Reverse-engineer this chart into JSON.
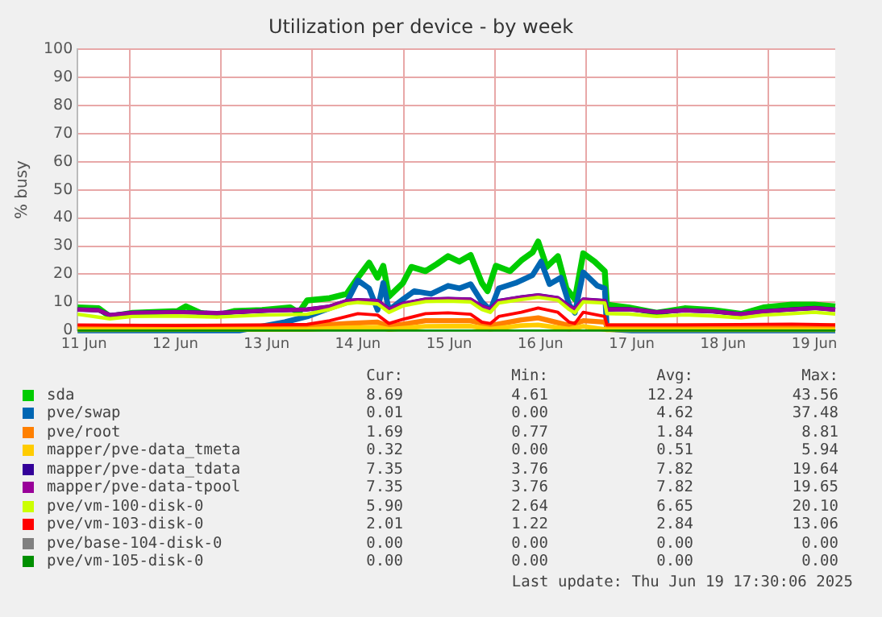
{
  "chart_data": {
    "type": "line",
    "title": "Utilization per device - by week",
    "ylabel": "% busy",
    "xlim": [
      "2025-06-11T10:19",
      "2025-06-19T17:30"
    ],
    "xticks": [
      {
        "value": "2025-06-11T12:00",
        "label": "11 Jun"
      },
      {
        "value": "2025-06-12T00:00",
        "label": null
      },
      {
        "value": "2025-06-12T12:00",
        "label": "12 Jun"
      },
      {
        "value": "2025-06-13T00:00",
        "label": null
      },
      {
        "value": "2025-06-13T12:00",
        "label": "13 Jun"
      },
      {
        "value": "2025-06-14T00:00",
        "label": null
      },
      {
        "value": "2025-06-14T12:00",
        "label": "14 Jun"
      },
      {
        "value": "2025-06-15T00:00",
        "label": null
      },
      {
        "value": "2025-06-15T12:00",
        "label": "15 Jun"
      },
      {
        "value": "2025-06-16T00:00",
        "label": null
      },
      {
        "value": "2025-06-16T12:00",
        "label": "16 Jun"
      },
      {
        "value": "2025-06-17T00:00",
        "label": null
      },
      {
        "value": "2025-06-17T12:00",
        "label": "17 Jun"
      },
      {
        "value": "2025-06-18T00:00",
        "label": null
      },
      {
        "value": "2025-06-18T12:00",
        "label": "18 Jun"
      },
      {
        "value": "2025-06-19T00:00",
        "label": null
      },
      {
        "value": "2025-06-19T12:00",
        "label": "19 Jun"
      }
    ],
    "ylim": [
      0,
      100
    ],
    "yticks": [
      0,
      10,
      20,
      30,
      40,
      50,
      60,
      70,
      80,
      90,
      100
    ],
    "grid": true,
    "legend": "bottom",
    "marker": "none",
    "line_style": "solid",
    "series": [
      {
        "name": "sda",
        "color": "#00cc00",
        "x": [
          "2025-06-11T10:19",
          "2025-06-11T15:50",
          "2025-06-11T18:49",
          "2025-06-12T00:45",
          "2025-06-12T12:36",
          "2025-06-12T14:48",
          "2025-06-12T18:32",
          "2025-06-12T22:58",
          "2025-06-13T03:24",
          "2025-06-13T10:49",
          "2025-06-13T18:13",
          "2025-06-13T20:27",
          "2025-06-13T22:39",
          "2025-06-14T04:35",
          "2025-06-14T09:03",
          "2025-06-14T12:00",
          "2025-06-14T14:57",
          "2025-06-14T17:11",
          "2025-06-14T18:40",
          "2025-06-14T20:10",
          "2025-06-14T23:51",
          "2025-06-15T02:04",
          "2025-06-15T05:47",
          "2025-06-15T08:44",
          "2025-06-15T11:43",
          "2025-06-15T14:40",
          "2025-06-15T17:38",
          "2025-06-15T20:36",
          "2025-06-15T22:05",
          "2025-06-16T00:17",
          "2025-06-16T04:00",
          "2025-06-16T06:58",
          "2025-06-16T09:56",
          "2025-06-16T11:24",
          "2025-06-16T13:38",
          "2025-06-16T16:35",
          "2025-06-16T18:49",
          "2025-06-16T21:03",
          "2025-06-16T23:15",
          "2025-06-17T02:14",
          "2025-06-17T04:54",
          "2025-06-17T05:28",
          "2025-06-17T11:07",
          "2025-06-17T18:32",
          "2025-06-18T01:55",
          "2025-06-18T09:20",
          "2025-06-18T16:45",
          "2025-06-18T22:39",
          "2025-06-19T06:04",
          "2025-06-19T12:00",
          "2025-06-19T17:30"
        ],
        "values": [
          8.2,
          7.9,
          5.0,
          6.3,
          6.9,
          8.6,
          6.3,
          5.4,
          6.9,
          7.3,
          8.2,
          6.3,
          10.7,
          11.5,
          13.0,
          18.8,
          24.1,
          18.8,
          23.0,
          12.1,
          16.9,
          22.6,
          21.1,
          23.6,
          26.4,
          24.5,
          26.8,
          16.9,
          14.0,
          23.0,
          21.1,
          24.9,
          27.8,
          31.6,
          22.6,
          26.4,
          15.0,
          11.1,
          27.4,
          24.5,
          21.1,
          9.2,
          8.2,
          6.3,
          7.9,
          7.3,
          5.9,
          8.2,
          9.2,
          9.2,
          8.6
        ]
      },
      {
        "name": "pve/swap",
        "color": "#0066b3",
        "x": [
          "2025-06-11T10:19",
          "2025-06-13T04:48",
          "2025-06-13T10:48",
          "2025-06-13T16:48",
          "2025-06-13T22:39",
          "2025-06-14T04:35",
          "2025-06-14T09:03",
          "2025-06-14T12:00",
          "2025-06-14T14:57",
          "2025-06-14T17:11",
          "2025-06-14T18:40",
          "2025-06-14T20:10",
          "2025-06-14T23:51",
          "2025-06-15T02:48",
          "2025-06-15T07:15",
          "2025-06-15T11:43",
          "2025-06-15T14:40",
          "2025-06-15T17:38",
          "2025-06-15T20:36",
          "2025-06-15T22:49",
          "2025-06-16T01:02",
          "2025-06-16T05:28",
          "2025-06-16T09:56",
          "2025-06-16T12:09",
          "2025-06-16T14:23",
          "2025-06-16T17:20",
          "2025-06-16T19:34",
          "2025-06-16T21:03",
          "2025-06-16T23:15",
          "2025-06-17T02:57",
          "2025-06-17T04:54",
          "2025-06-17T05:28",
          "2025-06-17T12:00",
          "2025-06-19T17:30"
        ],
        "values": [
          0,
          0,
          1.5,
          3,
          5,
          8,
          10,
          17.8,
          15,
          7.3,
          16.9,
          7.3,
          11.1,
          14,
          13,
          15.9,
          15,
          16.5,
          10.2,
          7.3,
          15,
          16.9,
          19.7,
          24.5,
          16.5,
          18.8,
          9.2,
          6.3,
          20.7,
          15.9,
          15,
          0.6,
          0,
          0
        ]
      },
      {
        "name": "pve/root",
        "color": "#ff8000",
        "x": [
          "2025-06-11T10:19",
          "2025-06-13T22:39",
          "2025-06-14T09:03",
          "2025-06-14T17:11",
          "2025-06-14T20:10",
          "2025-06-15T05:47",
          "2025-06-15T17:38",
          "2025-06-15T22:49",
          "2025-06-16T06:58",
          "2025-06-16T11:24",
          "2025-06-16T19:34",
          "2025-06-16T23:15",
          "2025-06-17T04:54",
          "2025-06-17T05:28",
          "2025-06-19T17:30"
        ],
        "values": [
          1.5,
          1.6,
          2.5,
          3.0,
          1.5,
          3.5,
          3.5,
          1.8,
          3.8,
          4.5,
          1.8,
          3.5,
          3.0,
          1.6,
          1.7
        ]
      },
      {
        "name": "mapper/pve-data_tmeta",
        "color": "#ffcc00",
        "x": [
          "2025-06-11T10:19",
          "2025-06-13T22:39",
          "2025-06-14T09:03",
          "2025-06-14T17:11",
          "2025-06-14T20:10",
          "2025-06-15T05:47",
          "2025-06-15T17:38",
          "2025-06-15T22:49",
          "2025-06-16T06:58",
          "2025-06-16T11:24",
          "2025-06-16T19:34",
          "2025-06-16T23:15",
          "2025-06-17T05:28",
          "2025-06-19T17:30"
        ],
        "values": [
          0.3,
          0.4,
          1.0,
          1.2,
          0.4,
          1.5,
          1.6,
          0.5,
          1.8,
          2.0,
          0.5,
          1.5,
          0.3,
          0.3
        ]
      },
      {
        "name": "mapper/pve-data_tdata",
        "color": "#330099",
        "x": [
          "2025-06-11T10:19",
          "2025-06-11T15:50",
          "2025-06-11T18:49",
          "2025-06-12T00:45",
          "2025-06-12T12:00",
          "2025-06-12T22:58",
          "2025-06-13T10:49",
          "2025-06-13T22:39",
          "2025-06-14T04:35",
          "2025-06-14T09:03",
          "2025-06-14T12:00",
          "2025-06-14T17:11",
          "2025-06-14T20:10",
          "2025-06-14T23:51",
          "2025-06-15T05:47",
          "2025-06-15T11:43",
          "2025-06-15T17:38",
          "2025-06-15T20:36",
          "2025-06-15T22:49",
          "2025-06-16T01:02",
          "2025-06-16T06:58",
          "2025-06-16T11:24",
          "2025-06-16T16:35",
          "2025-06-16T19:34",
          "2025-06-16T21:03",
          "2025-06-16T23:15",
          "2025-06-17T04:54",
          "2025-06-17T05:28",
          "2025-06-17T11:07",
          "2025-06-17T18:32",
          "2025-06-18T01:55",
          "2025-06-18T09:20",
          "2025-06-18T16:45",
          "2025-06-18T22:39",
          "2025-06-19T06:04",
          "2025-06-19T12:00",
          "2025-06-19T17:30"
        ],
        "values": [
          7.5,
          7.2,
          5.5,
          6.3,
          6.6,
          6.2,
          7.0,
          7.5,
          8.5,
          10.5,
          10.8,
          10.5,
          7.5,
          9.5,
          11.0,
          11.2,
          11.0,
          8.5,
          7.5,
          10.5,
          11.8,
          12.5,
          11.5,
          8.5,
          7.5,
          11.0,
          10.5,
          7.5,
          7.6,
          6.5,
          7.2,
          6.8,
          5.8,
          6.8,
          7.5,
          8.0,
          7.4
        ]
      },
      {
        "name": "mapper/pve-data-tpool",
        "color": "#990099",
        "x": [
          "2025-06-11T10:19",
          "2025-06-11T15:50",
          "2025-06-11T18:49",
          "2025-06-12T00:45",
          "2025-06-12T12:00",
          "2025-06-12T22:58",
          "2025-06-13T10:49",
          "2025-06-13T22:39",
          "2025-06-14T04:35",
          "2025-06-14T09:03",
          "2025-06-14T12:00",
          "2025-06-14T17:11",
          "2025-06-14T20:10",
          "2025-06-14T23:51",
          "2025-06-15T05:47",
          "2025-06-15T11:43",
          "2025-06-15T17:38",
          "2025-06-15T20:36",
          "2025-06-15T22:49",
          "2025-06-16T01:02",
          "2025-06-16T06:58",
          "2025-06-16T11:24",
          "2025-06-16T16:35",
          "2025-06-16T19:34",
          "2025-06-16T21:03",
          "2025-06-16T23:15",
          "2025-06-17T04:54",
          "2025-06-17T05:28",
          "2025-06-17T11:07",
          "2025-06-17T18:32",
          "2025-06-18T01:55",
          "2025-06-18T09:20",
          "2025-06-18T16:45",
          "2025-06-18T22:39",
          "2025-06-19T06:04",
          "2025-06-19T12:00",
          "2025-06-19T17:30"
        ],
        "values": [
          7.5,
          7.2,
          5.5,
          6.3,
          6.6,
          6.2,
          7.0,
          7.5,
          8.5,
          10.5,
          10.8,
          10.5,
          7.5,
          9.5,
          11.0,
          11.2,
          11.0,
          8.5,
          7.5,
          10.5,
          11.8,
          12.5,
          11.5,
          8.5,
          7.5,
          11.0,
          10.5,
          7.5,
          7.6,
          6.5,
          7.2,
          6.8,
          5.8,
          6.8,
          7.5,
          8.0,
          7.4
        ]
      },
      {
        "name": "pve/vm-100-disk-0",
        "color": "#ccff00",
        "x": [
          "2025-06-11T10:19",
          "2025-06-11T18:49",
          "2025-06-12T00:45",
          "2025-06-12T12:00",
          "2025-06-12T22:58",
          "2025-06-13T10:49",
          "2025-06-13T22:39",
          "2025-06-14T04:35",
          "2025-06-14T09:03",
          "2025-06-14T12:00",
          "2025-06-14T17:11",
          "2025-06-14T20:10",
          "2025-06-14T23:51",
          "2025-06-15T05:47",
          "2025-06-15T11:43",
          "2025-06-15T17:38",
          "2025-06-15T20:36",
          "2025-06-15T22:49",
          "2025-06-16T01:02",
          "2025-06-16T06:58",
          "2025-06-16T11:24",
          "2025-06-16T16:35",
          "2025-06-16T19:34",
          "2025-06-16T21:03",
          "2025-06-16T23:15",
          "2025-06-17T04:54",
          "2025-06-17T05:28",
          "2025-06-17T11:07",
          "2025-06-17T18:32",
          "2025-06-18T01:55",
          "2025-06-18T09:20",
          "2025-06-18T16:45",
          "2025-06-18T22:39",
          "2025-06-19T06:04",
          "2025-06-19T12:00",
          "2025-06-19T17:30"
        ],
        "values": [
          5.8,
          4.2,
          5.0,
          5.2,
          4.8,
          5.5,
          5.8,
          7.5,
          9.5,
          10.0,
          9.5,
          6.5,
          8.8,
          10.3,
          10.5,
          10.2,
          7.5,
          6.5,
          9.8,
          11.0,
          11.8,
          10.8,
          7.5,
          6.3,
          10.2,
          9.8,
          6.0,
          5.9,
          5.0,
          5.6,
          5.2,
          4.5,
          5.5,
          6.0,
          6.5,
          5.9
        ]
      },
      {
        "name": "pve/vm-103-disk-0",
        "color": "#ff0000",
        "x": [
          "2025-06-11T10:19",
          "2025-06-12T12:00",
          "2025-06-13T10:49",
          "2025-06-13T22:39",
          "2025-06-14T04:35",
          "2025-06-14T09:03",
          "2025-06-14T12:00",
          "2025-06-14T17:11",
          "2025-06-14T20:10",
          "2025-06-14T23:51",
          "2025-06-15T05:47",
          "2025-06-15T11:43",
          "2025-06-15T17:38",
          "2025-06-15T20:36",
          "2025-06-15T22:49",
          "2025-06-16T01:02",
          "2025-06-16T06:58",
          "2025-06-16T11:24",
          "2025-06-16T16:35",
          "2025-06-16T19:34",
          "2025-06-16T21:03",
          "2025-06-16T23:15",
          "2025-06-17T04:54",
          "2025-06-17T05:28",
          "2025-06-18T01:55",
          "2025-06-19T06:04",
          "2025-06-19T17:30"
        ],
        "values": [
          2.0,
          1.8,
          2.0,
          2.2,
          3.5,
          5.0,
          6.0,
          5.5,
          2.5,
          4.0,
          6.0,
          6.3,
          5.8,
          3.0,
          2.5,
          5.0,
          6.5,
          8.0,
          6.5,
          3.0,
          2.5,
          6.5,
          5.0,
          2.0,
          2.0,
          2.3,
          2.0
        ]
      },
      {
        "name": "pve/base-104-disk-0",
        "color": "#808080"
      },
      {
        "name": "pve/vm-105-disk-0",
        "color": "#008f00",
        "x": [
          "2025-06-11T10:19",
          "2025-06-19T17:30"
        ],
        "values": [
          0,
          0
        ]
      }
    ],
    "annotations": [
      "Cur:",
      "Min:",
      "Avg:",
      "Max:",
      "8.69",
      "4.61",
      "12.24",
      "43.56",
      "0.01",
      "0.00",
      "4.62",
      "37.48",
      "1.69",
      "0.77",
      "1.84",
      "8.81",
      "0.32",
      "0.00",
      "0.51",
      "5.94",
      "7.35",
      "3.76",
      "7.82",
      "19.64",
      "7.35",
      "3.76",
      "7.82",
      "19.65",
      "5.90",
      "2.64",
      "6.65",
      "20.10",
      "2.01",
      "1.22",
      "2.84",
      "13.06",
      "0.00",
      "0.00",
      "0.00",
      "0.00",
      "0.00",
      "0.00",
      "0.00",
      "0.00",
      "Last update: Thu Jun 19 17:30:06 2025"
    ]
  }
}
